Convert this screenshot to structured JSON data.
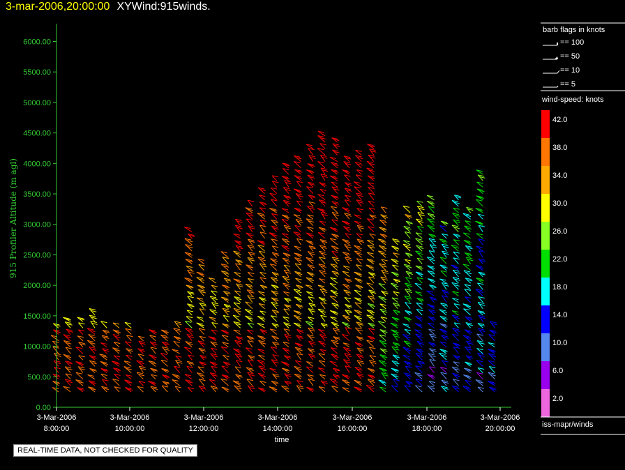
{
  "header": {
    "datetime": "3-mar-2006,20:00:00",
    "product": "XYWind:915winds."
  },
  "footer": {
    "disclaimer": "REAL-TIME DATA, NOT CHECKED FOR QUALITY"
  },
  "side_panel": {
    "barb_title": "barb flags in knots",
    "barb_legend": [
      "== 100",
      "== 50",
      "== 10",
      "== 5"
    ],
    "speed_title": "wind-speed: knots",
    "source": "iss-mapr/winds"
  },
  "colors": {
    "axis": "#33cc33",
    "panel_line": "#ffffff"
  },
  "chart_data": {
    "type": "wind-barb profile",
    "ylabel": "915 Profiler Altitude (m agl)",
    "xlabel": "time",
    "ylim": [
      0,
      6200
    ],
    "y_ticks": [
      "0.00",
      "500.00",
      "1000.00",
      "1500.00",
      "2000.00",
      "2500.00",
      "3000.00",
      "3500.00",
      "4000.00",
      "4500.00",
      "5000.00",
      "5500.00",
      "6000.00"
    ],
    "x_ticks": [
      {
        "date": "3-Mar-2006",
        "time": "8:00:00"
      },
      {
        "date": "3-Mar-2006",
        "time": "10:00:00"
      },
      {
        "date": "3-Mar-2006",
        "time": "12:00:00"
      },
      {
        "date": "3-Mar-2006",
        "time": "14:00:00"
      },
      {
        "date": "3-Mar-2006",
        "time": "16:00:00"
      },
      {
        "date": "3-Mar-2006",
        "time": "18:00:00"
      },
      {
        "date": "3-Mar-2006",
        "time": "20:00:00"
      }
    ],
    "colorbar": [
      {
        "label": "42.0",
        "color": "#ff0000"
      },
      {
        "label": "38.0",
        "color": "#ff7700"
      },
      {
        "label": "34.0",
        "color": "#ffaa00"
      },
      {
        "label": "30.0",
        "color": "#ffff00"
      },
      {
        "label": "26.0",
        "color": "#88ff22"
      },
      {
        "label": "22.0",
        "color": "#00dd00"
      },
      {
        "label": "18.0",
        "color": "#00ffff"
      },
      {
        "label": "14.0",
        "color": "#0000ff"
      },
      {
        "label": "10.0",
        "color": "#5588ee"
      },
      {
        "label": "6.0",
        "color": "#9900ee"
      },
      {
        "label": "2.0",
        "color": "#ee66dd"
      }
    ],
    "profile_times_hours": [
      8.0,
      8.33,
      8.67,
      9.0,
      9.33,
      9.67,
      10.0,
      10.33,
      10.67,
      11.0,
      11.33,
      11.67,
      12.0,
      12.33,
      12.67,
      13.0,
      13.33,
      13.67,
      14.0,
      14.33,
      14.67,
      15.0,
      15.33,
      15.67,
      16.0,
      16.33,
      16.67,
      17.0,
      17.33,
      17.67,
      18.0,
      18.33,
      18.67,
      19.0,
      19.33,
      19.67,
      20.0
    ],
    "profile_top_m": [
      1300,
      1450,
      1450,
      1600,
      1400,
      1300,
      1300,
      1100,
      1200,
      1200,
      1400,
      2900,
      2400,
      2100,
      2500,
      3000,
      3300,
      3600,
      3800,
      4000,
      4100,
      4250,
      4500,
      4400,
      4100,
      4200,
      4300,
      3200,
      2700,
      3200,
      3300,
      3400,
      3000,
      3400,
      3200,
      3900,
      1300
    ]
  }
}
